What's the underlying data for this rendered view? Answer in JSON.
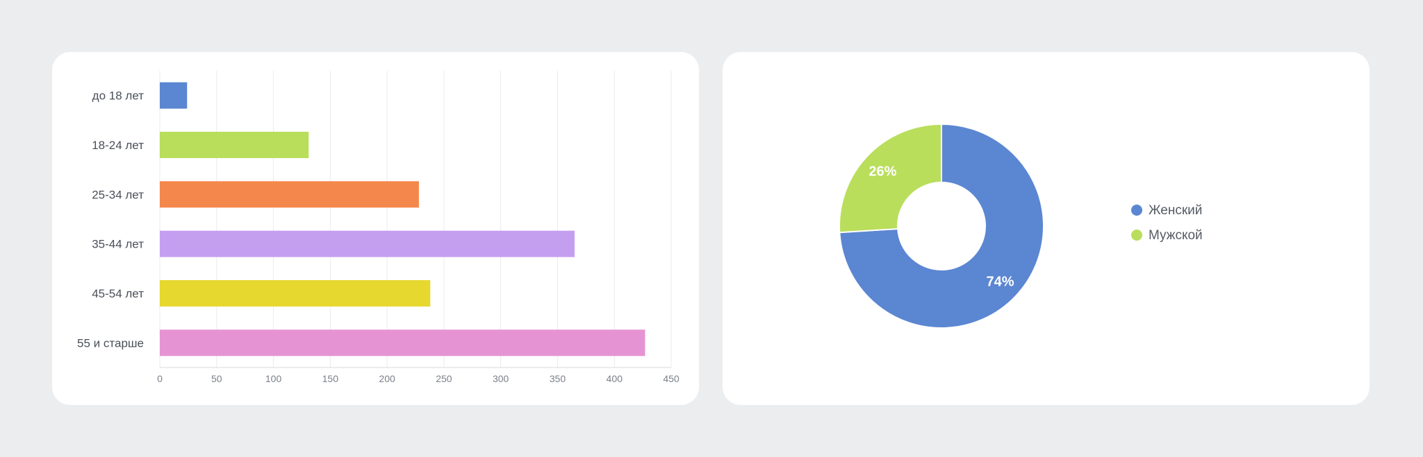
{
  "chart_data": [
    {
      "type": "bar",
      "orientation": "horizontal",
      "categories": [
        "до 18 лет",
        "18-24 лет",
        "25-34 лет",
        "35-44 лет",
        "45-54 лет",
        "55 и старше"
      ],
      "values": [
        24,
        131,
        228,
        365,
        238,
        427
      ],
      "colors": [
        "#5b86d2",
        "#b9de5c",
        "#f4874b",
        "#c49ff0",
        "#e6d82e",
        "#e693d3"
      ],
      "xticks": [
        0,
        50,
        100,
        150,
        200,
        250,
        300,
        350,
        400,
        450
      ],
      "xlim": [
        0,
        450
      ],
      "grid": true,
      "title": "",
      "xlabel": "",
      "ylabel": ""
    },
    {
      "type": "pie",
      "donut": true,
      "series": [
        {
          "name": "Женский",
          "value": 74,
          "label": "74%",
          "color": "#5b86d2"
        },
        {
          "name": "Мужской",
          "value": 26,
          "label": "26%",
          "color": "#b9de5c"
        }
      ],
      "legend_position": "right"
    }
  ]
}
